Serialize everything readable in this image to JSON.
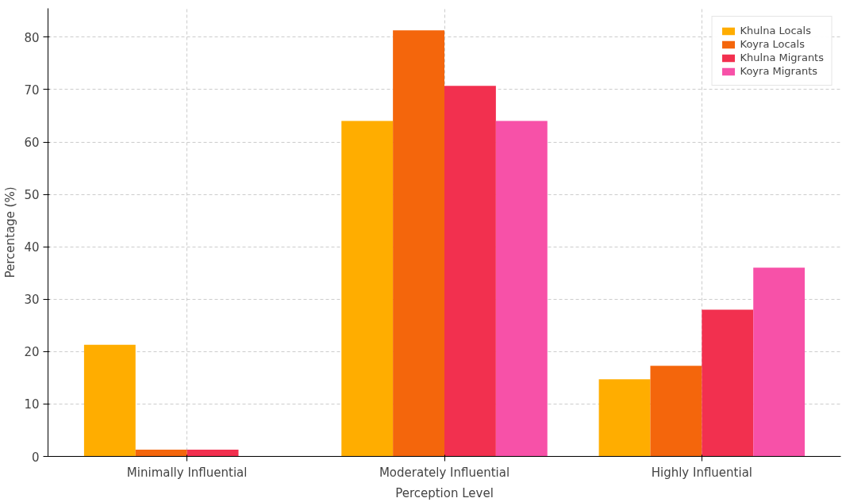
{
  "chart_data": {
    "type": "bar",
    "xlabel": "Perception Level",
    "ylabel": "Percentage (%)",
    "categories": [
      "Minimally Influential",
      "Moderately Influential",
      "Highly Influential"
    ],
    "series": [
      {
        "name": "Khulna Locals",
        "color": "#ffad00",
        "values": [
          21.3,
          64.0,
          14.7
        ]
      },
      {
        "name": "Koyra Locals",
        "color": "#f4660c",
        "values": [
          1.3,
          81.3,
          17.3
        ]
      },
      {
        "name": "Khulna Migrants",
        "color": "#f2304f",
        "values": [
          1.3,
          70.7,
          28.0
        ]
      },
      {
        "name": "Koyra Migrants",
        "color": "#f751a8",
        "values": [
          0,
          64.0,
          36.0
        ]
      }
    ],
    "ylim": [
      0,
      85.5
    ],
    "yticks": [
      0,
      10,
      20,
      30,
      40,
      50,
      60,
      70,
      80
    ],
    "grid": true,
    "legend": "top right"
  }
}
